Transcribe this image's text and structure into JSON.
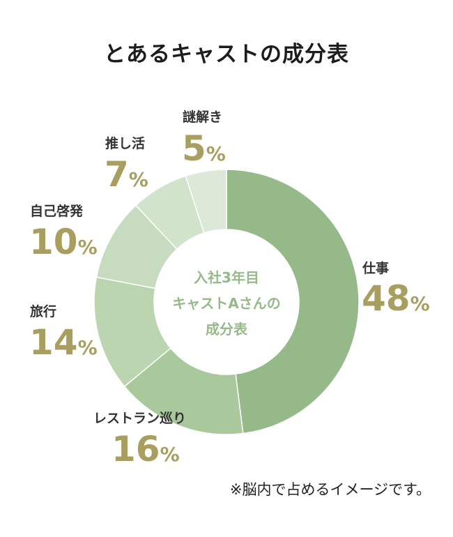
{
  "chart_data": {
    "type": "pie",
    "title": "とあるキャストの成分表",
    "center_label": [
      "入社3年目",
      "キャストAさんの",
      "成分表"
    ],
    "unit": "%",
    "slices": [
      {
        "label": "仕事",
        "value": 48,
        "color": "#96b98a"
      },
      {
        "label": "レストラン巡り",
        "value": 16,
        "color": "#a9c99d"
      },
      {
        "label": "旅行",
        "value": 14,
        "color": "#bcd5b1"
      },
      {
        "label": "自己啓発",
        "value": 10,
        "color": "#c7dcbf"
      },
      {
        "label": "推し活",
        "value": 7,
        "color": "#d2e3cb"
      },
      {
        "label": "謎解き",
        "value": 5,
        "color": "#dde9d8"
      }
    ]
  },
  "footnote": "※脳内で占めるイメージです。"
}
